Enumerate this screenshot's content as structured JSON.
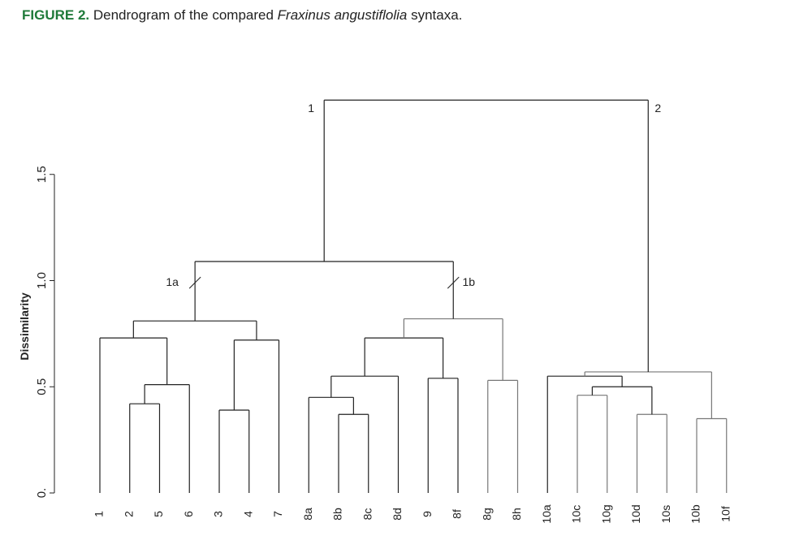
{
  "caption": {
    "figure_label": "FIGURE 2.",
    "text_before": "Dendrogram of the compared",
    "species": "Fraxinus angustiflolia",
    "text_after": "syntaxa."
  },
  "colors": {
    "accent": "#1f7a3a",
    "dark_line": "#222222",
    "light_line": "#777777"
  },
  "chart_data": {
    "type": "dendrogram",
    "ylabel": "Dissimilarity",
    "ylim": [
      0,
      1.5
    ],
    "yticks": [
      {
        "value": 0,
        "label": "0."
      },
      {
        "value": 0.5,
        "label": "0.5"
      },
      {
        "value": 1.0,
        "label": "1.0"
      },
      {
        "value": 1.5,
        "label": "1.5"
      }
    ],
    "leaves": [
      "1",
      "2",
      "5",
      "6",
      "3",
      "4",
      "7",
      "8a",
      "8b",
      "8c",
      "8d",
      "9",
      "8f",
      "8g",
      "8h",
      "10a",
      "10c",
      "10g",
      "10d",
      "10s",
      "10b",
      "10f"
    ],
    "merges": [
      {
        "id": "n25",
        "children": [
          "2",
          "5"
        ],
        "height": 0.42
      },
      {
        "id": "n34",
        "children": [
          "3",
          "4"
        ],
        "height": 0.39
      },
      {
        "id": "n256",
        "children": [
          "n25",
          "6"
        ],
        "height": 0.51
      },
      {
        "id": "n1256",
        "children": [
          "1",
          "n256"
        ],
        "height": 0.73
      },
      {
        "id": "n347",
        "children": [
          "n34",
          "7"
        ],
        "height": 0.72
      },
      {
        "id": "n1a",
        "children": [
          "n1256",
          "n347"
        ],
        "height": 0.81
      },
      {
        "id": "n8bc",
        "children": [
          "8b",
          "8c"
        ],
        "height": 0.37
      },
      {
        "id": "n8abc",
        "children": [
          "8a",
          "n8bc"
        ],
        "height": 0.45
      },
      {
        "id": "n8abcd",
        "children": [
          "n8abc",
          "8d"
        ],
        "height": 0.55
      },
      {
        "id": "n9f",
        "children": [
          "9",
          "8f"
        ],
        "height": 0.54
      },
      {
        "id": "n8a9f",
        "children": [
          "n8abcd",
          "n9f"
        ],
        "height": 0.73
      },
      {
        "id": "n8gh",
        "children": [
          "8g",
          "8h"
        ],
        "height": 0.53
      },
      {
        "id": "n1b",
        "children": [
          "n8a9f",
          "n8gh"
        ],
        "height": 0.82
      },
      {
        "id": "n1",
        "children": [
          "n1a",
          "n1b"
        ],
        "height": 1.09
      },
      {
        "id": "n10cg",
        "children": [
          "10c",
          "10g"
        ],
        "height": 0.46
      },
      {
        "id": "n10ds",
        "children": [
          "10d",
          "10s"
        ],
        "height": 0.37
      },
      {
        "id": "n10cgds",
        "children": [
          "n10cg",
          "n10ds"
        ],
        "height": 0.5
      },
      {
        "id": "n10acgds",
        "children": [
          "10a",
          "n10cgds"
        ],
        "height": 0.55
      },
      {
        "id": "n10bf",
        "children": [
          "10b",
          "10f"
        ],
        "height": 0.35
      },
      {
        "id": "n10all",
        "children": [
          "n10acgds",
          "n10bf"
        ],
        "height": 0.57
      },
      {
        "id": "n2",
        "children": [
          "n10all"
        ],
        "height": 0.57
      },
      {
        "id": "root",
        "children": [
          "n1",
          "n10all"
        ],
        "height": 1.85
      }
    ],
    "light_branches": [
      "n1b",
      "n8gh",
      "n10all",
      "n10bf",
      "n10ds",
      "n10cg"
    ],
    "annotations": [
      {
        "label": "1",
        "node": "n1"
      },
      {
        "label": "2",
        "node": "n10all"
      },
      {
        "label": "1a",
        "node": "n1a"
      },
      {
        "label": "1b",
        "node": "n1b"
      }
    ]
  }
}
